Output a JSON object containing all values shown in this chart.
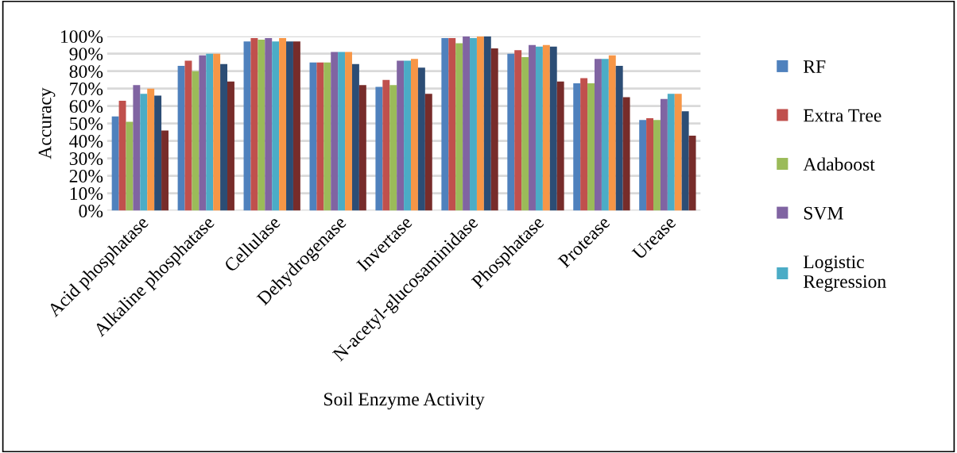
{
  "chart_data": {
    "type": "bar",
    "xlabel": "Soil Enzyme Activity",
    "ylabel": "Accuracy",
    "categories": [
      "Acid phosphatase",
      "Alkaline phosphatase",
      "Cellulase",
      "Dehydrogenase",
      "Invertase",
      "N-acetyl-glucosaminidase",
      "Phosphatase",
      "Protease",
      "Urease"
    ],
    "series": [
      {
        "name": "RF",
        "color": "#4f81bd",
        "values": [
          54,
          83,
          97,
          85,
          71,
          99,
          90,
          73,
          52
        ]
      },
      {
        "name": "Extra Tree",
        "color": "#c0504d",
        "values": [
          63,
          86,
          99,
          85,
          75,
          99,
          92,
          76,
          53
        ]
      },
      {
        "name": "Adaboost",
        "color": "#9bbb59",
        "values": [
          51,
          80,
          98,
          85,
          72,
          96,
          88,
          73,
          52
        ]
      },
      {
        "name": "SVM",
        "color": "#8064a2",
        "values": [
          72,
          89,
          99,
          91,
          86,
          100,
          95,
          87,
          64
        ]
      },
      {
        "name": "Logistic Regression",
        "color": "#4bacc6",
        "values": [
          67,
          90,
          97,
          91,
          86,
          99,
          94,
          87,
          67
        ]
      },
      {
        "color": "#f79646",
        "values": [
          70,
          90,
          99,
          91,
          87,
          100,
          95,
          89,
          67
        ]
      },
      {
        "color": "#2c4d75",
        "values": [
          66,
          84,
          97,
          84,
          82,
          100,
          94,
          83,
          57
        ]
      },
      {
        "color": "#772c2a",
        "values": [
          46,
          74,
          97,
          72,
          67,
          93,
          74,
          65,
          43
        ]
      }
    ],
    "ylim": [
      0,
      100
    ],
    "yticks": [
      {
        "value": 0,
        "label": "0%"
      },
      {
        "value": 10,
        "label": "10%"
      },
      {
        "value": 20,
        "label": "20%"
      },
      {
        "value": 30,
        "label": "30%"
      },
      {
        "value": 40,
        "label": "40%"
      },
      {
        "value": 50,
        "label": "50%"
      },
      {
        "value": 60,
        "label": "60%"
      },
      {
        "value": 70,
        "label": "70%"
      },
      {
        "value": 80,
        "label": "80%"
      },
      {
        "value": 90,
        "label": "90%"
      },
      {
        "value": 100,
        "label": "100%"
      }
    ],
    "grid": "y",
    "legend": "right"
  }
}
